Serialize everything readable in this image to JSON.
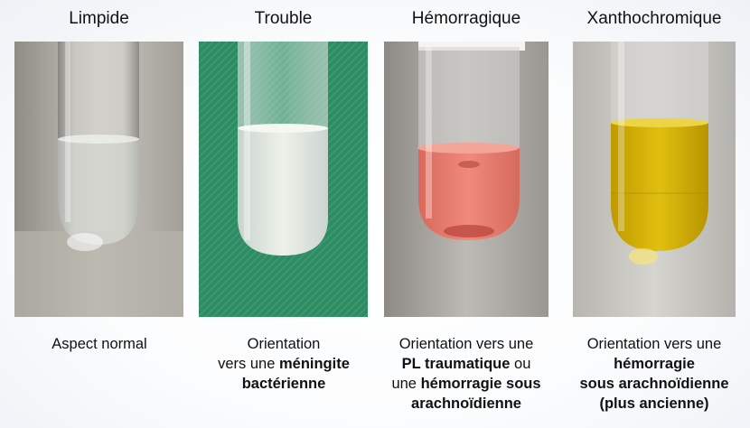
{
  "panels": [
    {
      "title": "Limpide",
      "caption_lines": [
        [
          {
            "text": "Aspect normal",
            "bold": false
          }
        ]
      ]
    },
    {
      "title": "Trouble",
      "caption_lines": [
        [
          {
            "text": "Orientation",
            "bold": false
          }
        ],
        [
          {
            "text": "vers une ",
            "bold": false
          },
          {
            "text": "méningite",
            "bold": true
          }
        ],
        [
          {
            "text": "bactérienne",
            "bold": true
          }
        ]
      ]
    },
    {
      "title": "Hémorragique",
      "caption_lines": [
        [
          {
            "text": "Orientation vers une",
            "bold": false
          }
        ],
        [
          {
            "text": "PL traumatique",
            "bold": true
          },
          {
            "text": " ou",
            "bold": false
          }
        ],
        [
          {
            "text": "une ",
            "bold": false
          },
          {
            "text": "hémorragie sous",
            "bold": true
          }
        ],
        [
          {
            "text": "arachnoïdienne",
            "bold": true
          }
        ]
      ]
    },
    {
      "title": "Xanthochromique",
      "caption_lines": [
        [
          {
            "text": "Orientation vers une",
            "bold": false
          }
        ],
        [
          {
            "text": "hémorragie",
            "bold": true
          }
        ],
        [
          {
            "text": "sous arachnoïdienne",
            "bold": true
          }
        ],
        [
          {
            "text": "(plus ancienne)",
            "bold": true
          }
        ]
      ]
    }
  ],
  "colors": {
    "clear_fluid": "#c9ccc8",
    "cloudy_fluid": "#e6ebe4",
    "bloody_fluid": "#e87a6c",
    "xantho_fluid": "#d6b000",
    "green_cloth": "#2e8b63"
  }
}
